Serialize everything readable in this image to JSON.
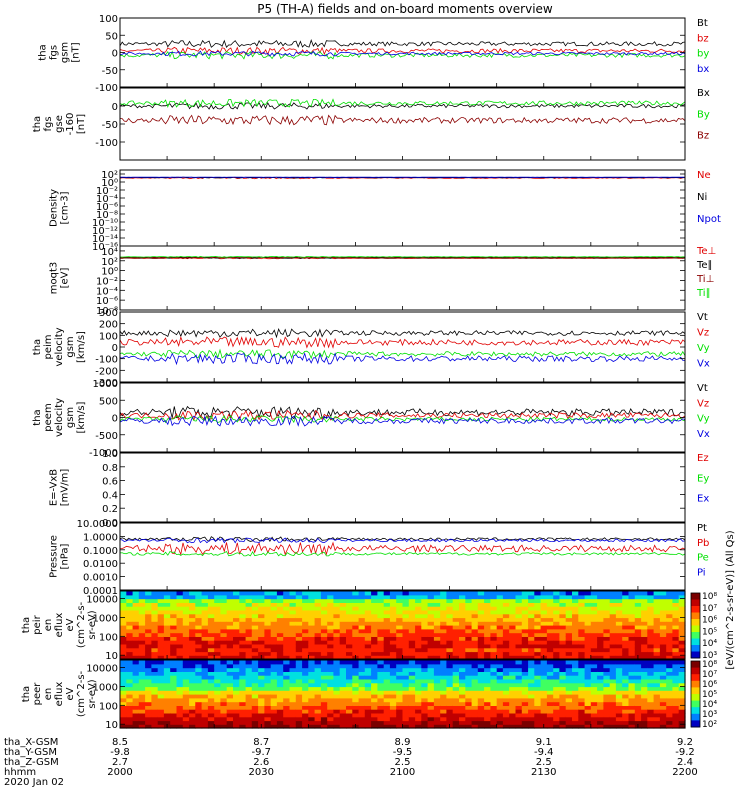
{
  "title": "P5 (TH-A) fields and on-board moments overview",
  "colors": {
    "black": "#000000",
    "red": "#e00000",
    "green": "#00e000",
    "blue": "#0000e0",
    "darkred": "#8b0000"
  },
  "chart_data": [
    {
      "type": "line",
      "ylabel": [
        "tha",
        "fgs",
        "gsm",
        "[nT]"
      ],
      "ylim": [
        -100,
        100
      ],
      "yticks": [
        "100",
        "50",
        "0",
        "-50",
        "-100"
      ],
      "tickvals": [
        100,
        50,
        0,
        -50,
        -100
      ],
      "series": [
        {
          "name": "Bt",
          "color": "black",
          "level": 25,
          "noise": 6
        },
        {
          "name": "bz",
          "color": "red",
          "level": 5,
          "noise": 6
        },
        {
          "name": "by",
          "color": "green",
          "level": -8,
          "noise": 6
        },
        {
          "name": "bx",
          "color": "blue",
          "level": -3,
          "noise": 4
        }
      ]
    },
    {
      "type": "line",
      "ylabel": [
        "tha",
        "fgs",
        "gse",
        "-160",
        "[nT]"
      ],
      "ylim": [
        -150,
        50
      ],
      "yticks": [
        "0",
        "-50",
        "-100"
      ],
      "tickvals": [
        0,
        -50,
        -100
      ],
      "series": [
        {
          "name": "Bx",
          "color": "black",
          "level": 0,
          "noise": 5
        },
        {
          "name": "By",
          "color": "green",
          "level": 8,
          "noise": 6
        },
        {
          "name": "Bz",
          "color": "darkred",
          "level": -40,
          "noise": 8
        }
      ]
    },
    {
      "type": "line",
      "ylabel": [
        "Density",
        "[cm-3]"
      ],
      "ylim": [
        -16,
        3
      ],
      "log": true,
      "yticks": [
        "10^2",
        "10^0",
        "10^-2",
        "10^-4",
        "10^-6",
        "10^-8",
        "10^-10",
        "10^-12",
        "10^-14",
        "10^-16"
      ],
      "tickvals": [
        2,
        0,
        -2,
        -4,
        -6,
        -8,
        -10,
        -12,
        -14,
        -16
      ],
      "series": [
        {
          "name": "Ne",
          "color": "red",
          "level": 1,
          "noise": 0.1
        },
        {
          "name": "Ni",
          "color": "black",
          "level": 1.1,
          "noise": 0.05
        },
        {
          "name": "Npot",
          "color": "blue",
          "level": 1.2,
          "noise": 0.02
        }
      ]
    },
    {
      "type": "line",
      "ylabel": [
        "moqt3",
        "[eV]"
      ],
      "ylim": [
        -8,
        5
      ],
      "log": true,
      "yticks": [
        "10^4",
        "10^2",
        "10^0",
        "10^-2",
        "10^-4",
        "10^-6",
        "10^-8"
      ],
      "tickvals": [
        4,
        2,
        0,
        -2,
        -4,
        -6,
        -8
      ],
      "series": [
        {
          "name": "Te⊥",
          "color": "red",
          "level": 2.5,
          "noise": 0.05
        },
        {
          "name": "Te∥",
          "color": "black",
          "level": 2.6,
          "noise": 0.05
        },
        {
          "name": "Ti⊥",
          "color": "darkred",
          "level": 2.7,
          "noise": 0.05
        },
        {
          "name": "Ti∥",
          "color": "green",
          "level": 2.8,
          "noise": 0.05
        }
      ]
    },
    {
      "type": "line",
      "ylabel": [
        "tha",
        "peim",
        "velocity",
        "gsm",
        "[km/s]"
      ],
      "ylim": [
        -300,
        300
      ],
      "yticks": [
        "300",
        "200",
        "100",
        "0",
        "-100",
        "-200",
        "-300"
      ],
      "tickvals": [
        300,
        200,
        100,
        0,
        -100,
        -200,
        -300
      ],
      "series": [
        {
          "name": "Vt",
          "color": "black",
          "level": 120,
          "noise": 20
        },
        {
          "name": "Vz",
          "color": "red",
          "level": 40,
          "noise": 25
        },
        {
          "name": "Vy",
          "color": "green",
          "level": -60,
          "noise": 20
        },
        {
          "name": "Vx",
          "color": "blue",
          "level": -100,
          "noise": 25
        }
      ]
    },
    {
      "type": "line",
      "ylabel": [
        "tha",
        "peem",
        "velocity",
        "gsm",
        "[km/s]"
      ],
      "ylim": [
        -1000,
        1000
      ],
      "yticks": [
        "1000",
        "500",
        "0",
        "-500",
        "-1000"
      ],
      "tickvals": [
        1000,
        500,
        0,
        -500,
        -1000
      ],
      "series": [
        {
          "name": "Vt",
          "color": "black",
          "level": 150,
          "noise": 100
        },
        {
          "name": "Vz",
          "color": "red",
          "level": 60,
          "noise": 80
        },
        {
          "name": "Vy",
          "color": "green",
          "level": -50,
          "noise": 60
        },
        {
          "name": "Vx",
          "color": "blue",
          "level": -100,
          "noise": 80
        }
      ]
    },
    {
      "type": "line",
      "ylabel": [
        "E=-VxB",
        "[mV/m]"
      ],
      "ylim": [
        0,
        1
      ],
      "yticks": [
        "1.0",
        "0.8",
        "0.6",
        "0.4",
        "0.2",
        "0.0"
      ],
      "tickvals": [
        1,
        0.8,
        0.6,
        0.4,
        0.2,
        0
      ],
      "series": [
        {
          "name": "Ez",
          "color": "red"
        },
        {
          "name": "Ey",
          "color": "green"
        },
        {
          "name": "Ex",
          "color": "blue"
        }
      ]
    },
    {
      "type": "line",
      "ylabel": [
        "Pressure",
        "[nPa]"
      ],
      "ylim": [
        -4,
        1
      ],
      "log": true,
      "yticks": [
        "10.0000",
        "1.0000",
        "0.1000",
        "0.0100",
        "0.0010",
        "0.0001"
      ],
      "tickvals": [
        1,
        0,
        -1,
        -2,
        -3,
        -4
      ],
      "series": [
        {
          "name": "Pt",
          "color": "black",
          "level": -0.2,
          "noise": 0.1
        },
        {
          "name": "Pb",
          "color": "red",
          "level": -0.9,
          "noise": 0.25
        },
        {
          "name": "Pe",
          "color": "green",
          "level": -1.3,
          "noise": 0.1
        },
        {
          "name": "Pi",
          "color": "blue",
          "level": -0.3,
          "noise": 0.1
        }
      ]
    },
    {
      "type": "heatmap",
      "ylabel": [
        "tha",
        "peir",
        "en",
        "eflux",
        "eV",
        "(cm^2-s-",
        "sr-eV)"
      ],
      "log": true,
      "yticks": [
        "10000",
        "1000",
        "100",
        "10"
      ],
      "tickvals": [
        4,
        3,
        2,
        1
      ],
      "ylim": [
        0.8,
        4.4
      ]
    },
    {
      "type": "heatmap",
      "ylabel": [
        "tha",
        "peer",
        "en",
        "eflux",
        "eV",
        "(cm^2-s-",
        "sr-eV)"
      ],
      "log": true,
      "yticks": [
        "10000",
        "1000",
        "100",
        "10"
      ],
      "tickvals": [
        4,
        3,
        2,
        1
      ],
      "ylim": [
        0.8,
        4.4
      ]
    }
  ],
  "colorbar": {
    "label": "[eV/(cm^2-s-sr-eV)] (All Qs)",
    "ticks": [
      "10^8",
      "10^7",
      "10^6",
      "10^5",
      "10^4",
      "10^3"
    ],
    "ticks2": [
      "10^8",
      "10^7",
      "10^6",
      "10^5",
      "10^4",
      "10^3",
      "10^2"
    ]
  },
  "xaxis": {
    "rows": [
      {
        "label": "tha_X-GSM",
        "values": [
          "8.5",
          "8.7",
          "8.9",
          "9.1",
          "9.2"
        ]
      },
      {
        "label": "tha_Y-GSM",
        "values": [
          "-9.8",
          "-9.7",
          "-9.5",
          "-9.4",
          "-9.2"
        ]
      },
      {
        "label": "tha_Z-GSM",
        "values": [
          "2.7",
          "2.6",
          "2.5",
          "2.5",
          "2.4"
        ]
      },
      {
        "label": "hhmm",
        "values": [
          "2000",
          "2030",
          "2100",
          "2130",
          "2200"
        ]
      }
    ],
    "date": "2020 Jan 02",
    "range_min": [
      0,
      120
    ]
  }
}
